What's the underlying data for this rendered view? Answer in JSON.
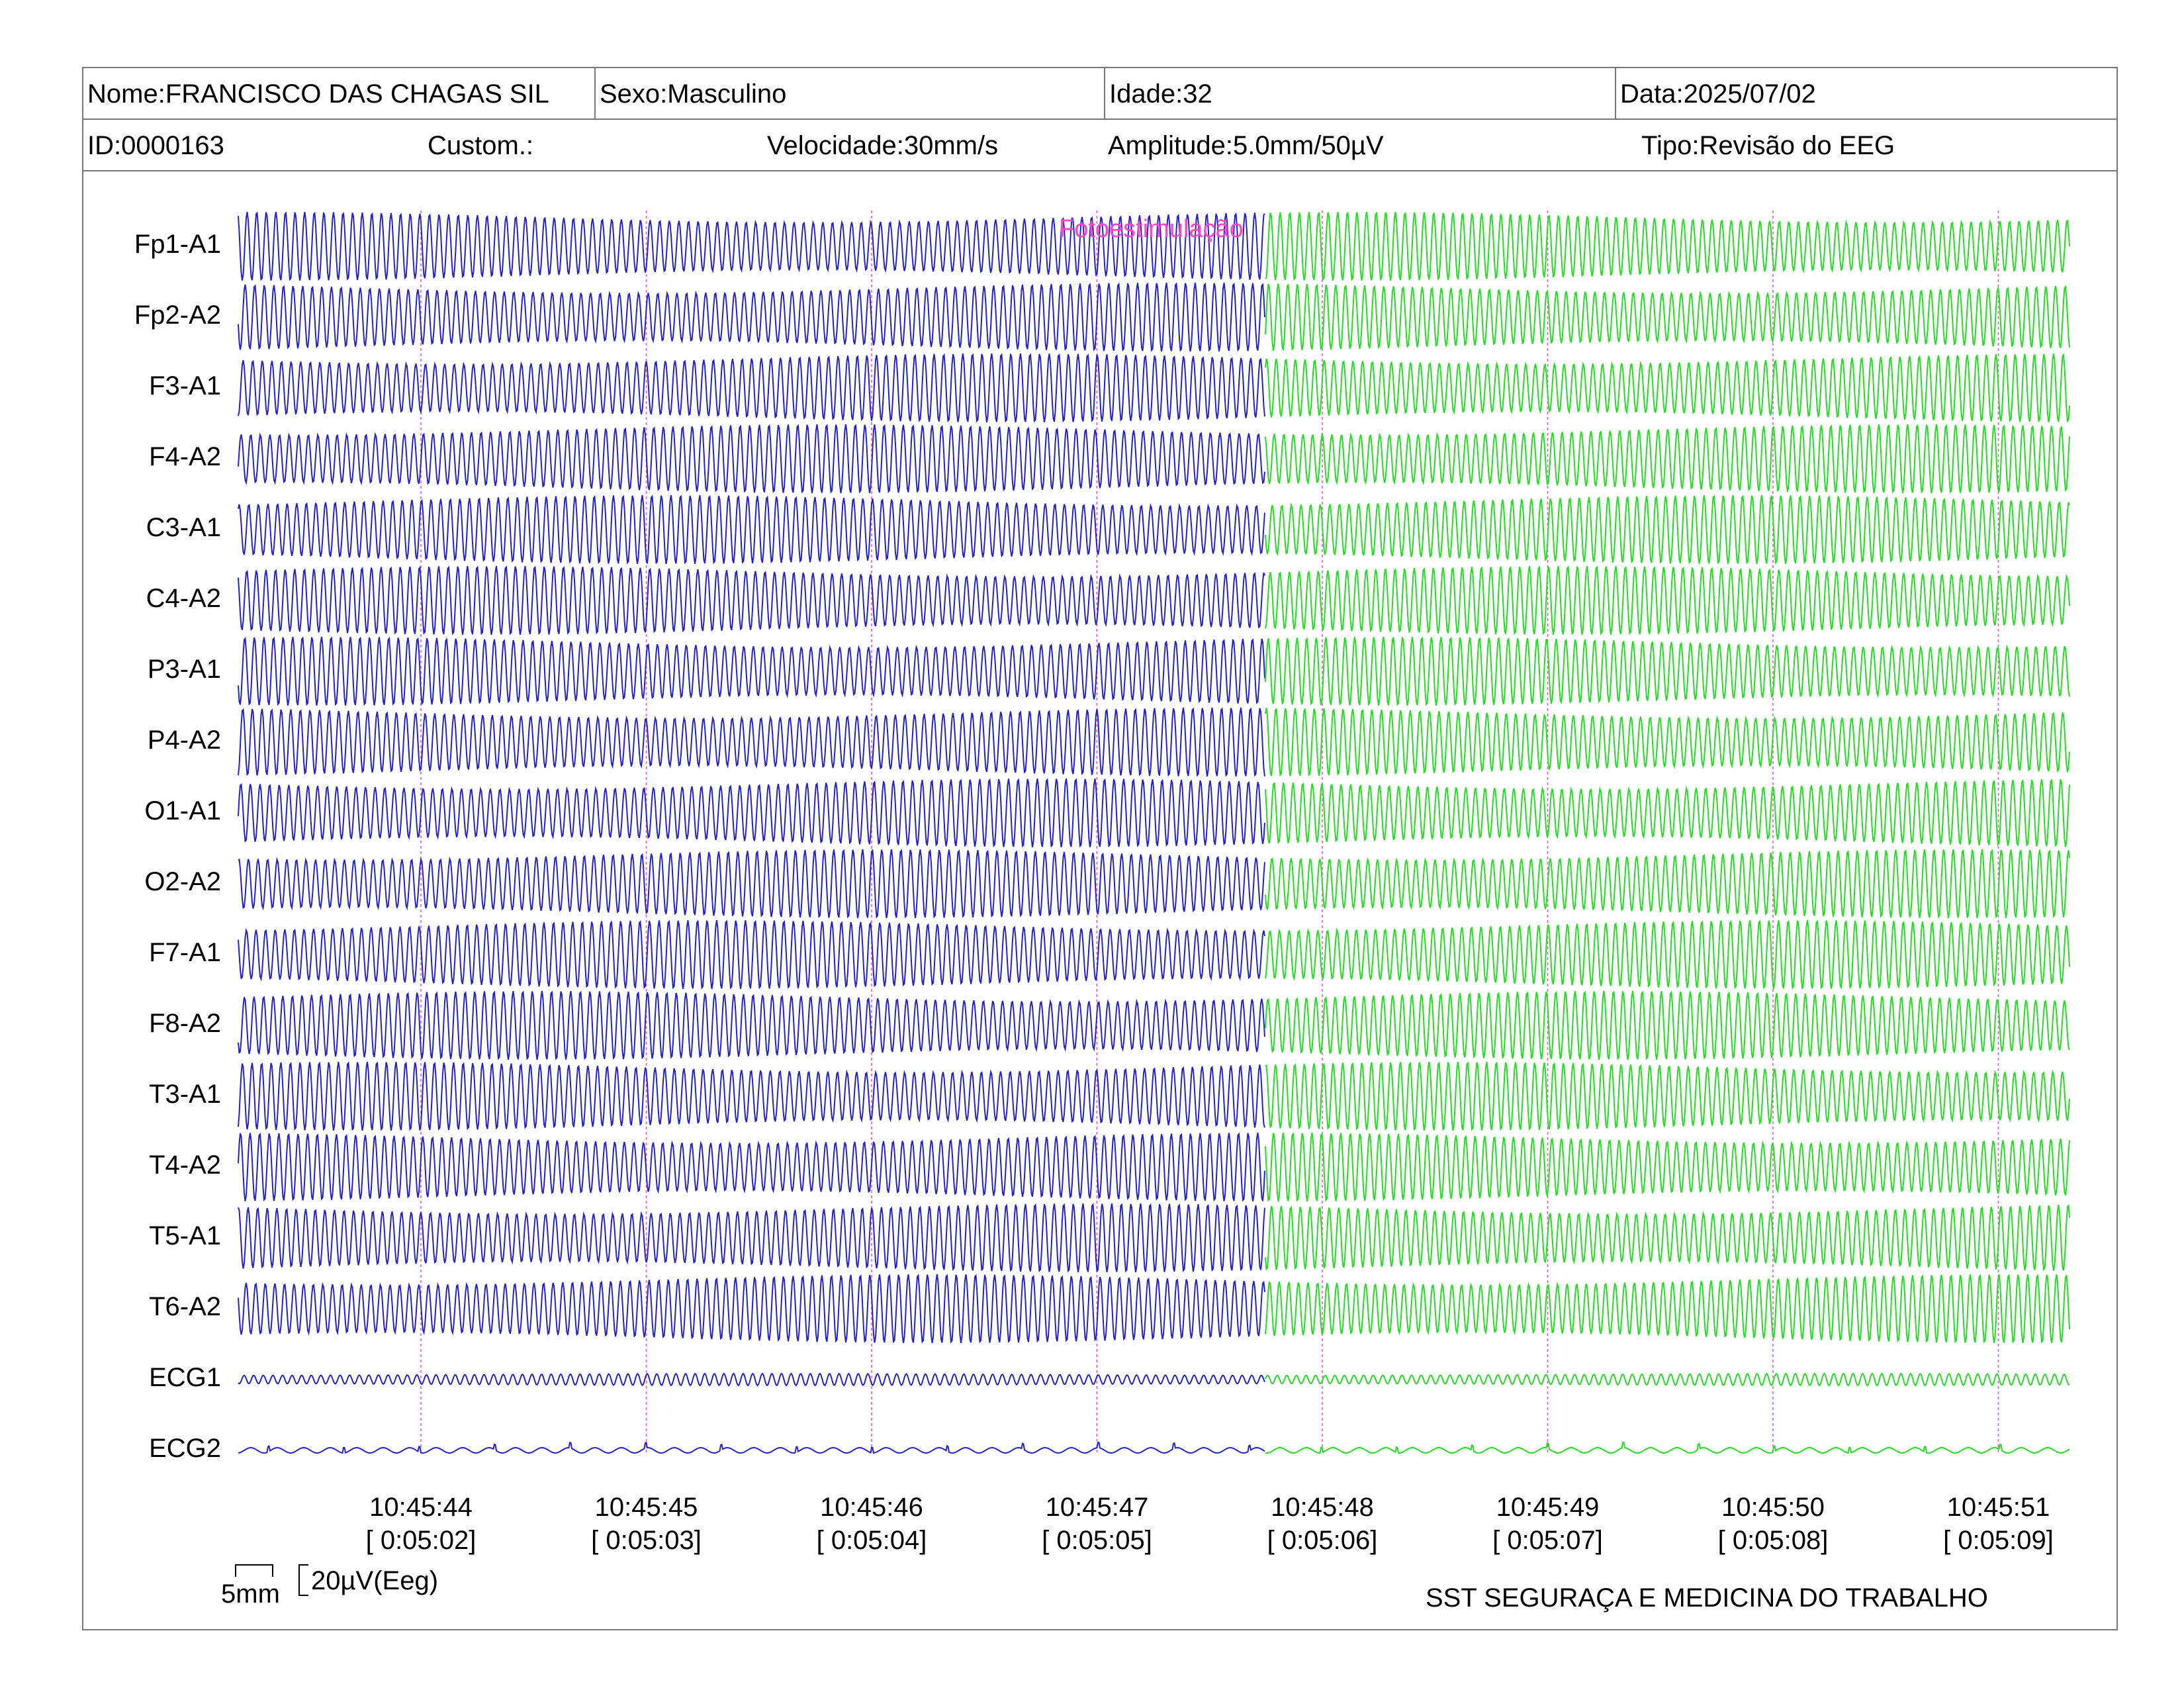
{
  "header": {
    "nome": "Nome:FRANCISCO DAS CHAGAS SIL",
    "sexo": "Sexo:Masculino",
    "idade": "Idade:32",
    "data": "Data:2025/07/02",
    "id": "ID:0000163",
    "custom": "Custom.:",
    "velocidade": "Velocidade:30mm/s",
    "amplitude": "Amplitude:5.0mm/50µV",
    "tipo": "Tipo:Revisão do EEG"
  },
  "event_label": "Fotoestimulação",
  "channels": [
    "Fp1-A1",
    "Fp2-A2",
    "F3-A1",
    "F4-A2",
    "C3-A1",
    "C4-A2",
    "P3-A1",
    "P4-A2",
    "O1-A1",
    "O2-A2",
    "F7-A1",
    "F8-A2",
    "T3-A1",
    "T4-A2",
    "T5-A1",
    "T6-A2",
    "ECG1",
    "ECG2"
  ],
  "time_marks": [
    {
      "time": "10:45:44",
      "elapsed": "[ 0:05:02]"
    },
    {
      "time": "10:45:45",
      "elapsed": "[ 0:05:03]"
    },
    {
      "time": "10:45:46",
      "elapsed": "[ 0:05:04]"
    },
    {
      "time": "10:45:47",
      "elapsed": "[ 0:05:05]"
    },
    {
      "time": "10:45:48",
      "elapsed": "[ 0:05:06]"
    },
    {
      "time": "10:45:49",
      "elapsed": "[ 0:05:07]"
    },
    {
      "time": "10:45:50",
      "elapsed": "[ 0:05:08]"
    },
    {
      "time": "10:45:51",
      "elapsed": "[ 0:05:09]"
    }
  ],
  "scale": {
    "time_label": "5mm",
    "amp_label": "20µV(Eeg)"
  },
  "footer": "SST SEGURAÇA E MEDICINA DO TRABALHO",
  "colors": {
    "before_event": "#2222cc",
    "after_event": "#22dd22",
    "event": "#ff44cc",
    "border": "#777777"
  }
}
